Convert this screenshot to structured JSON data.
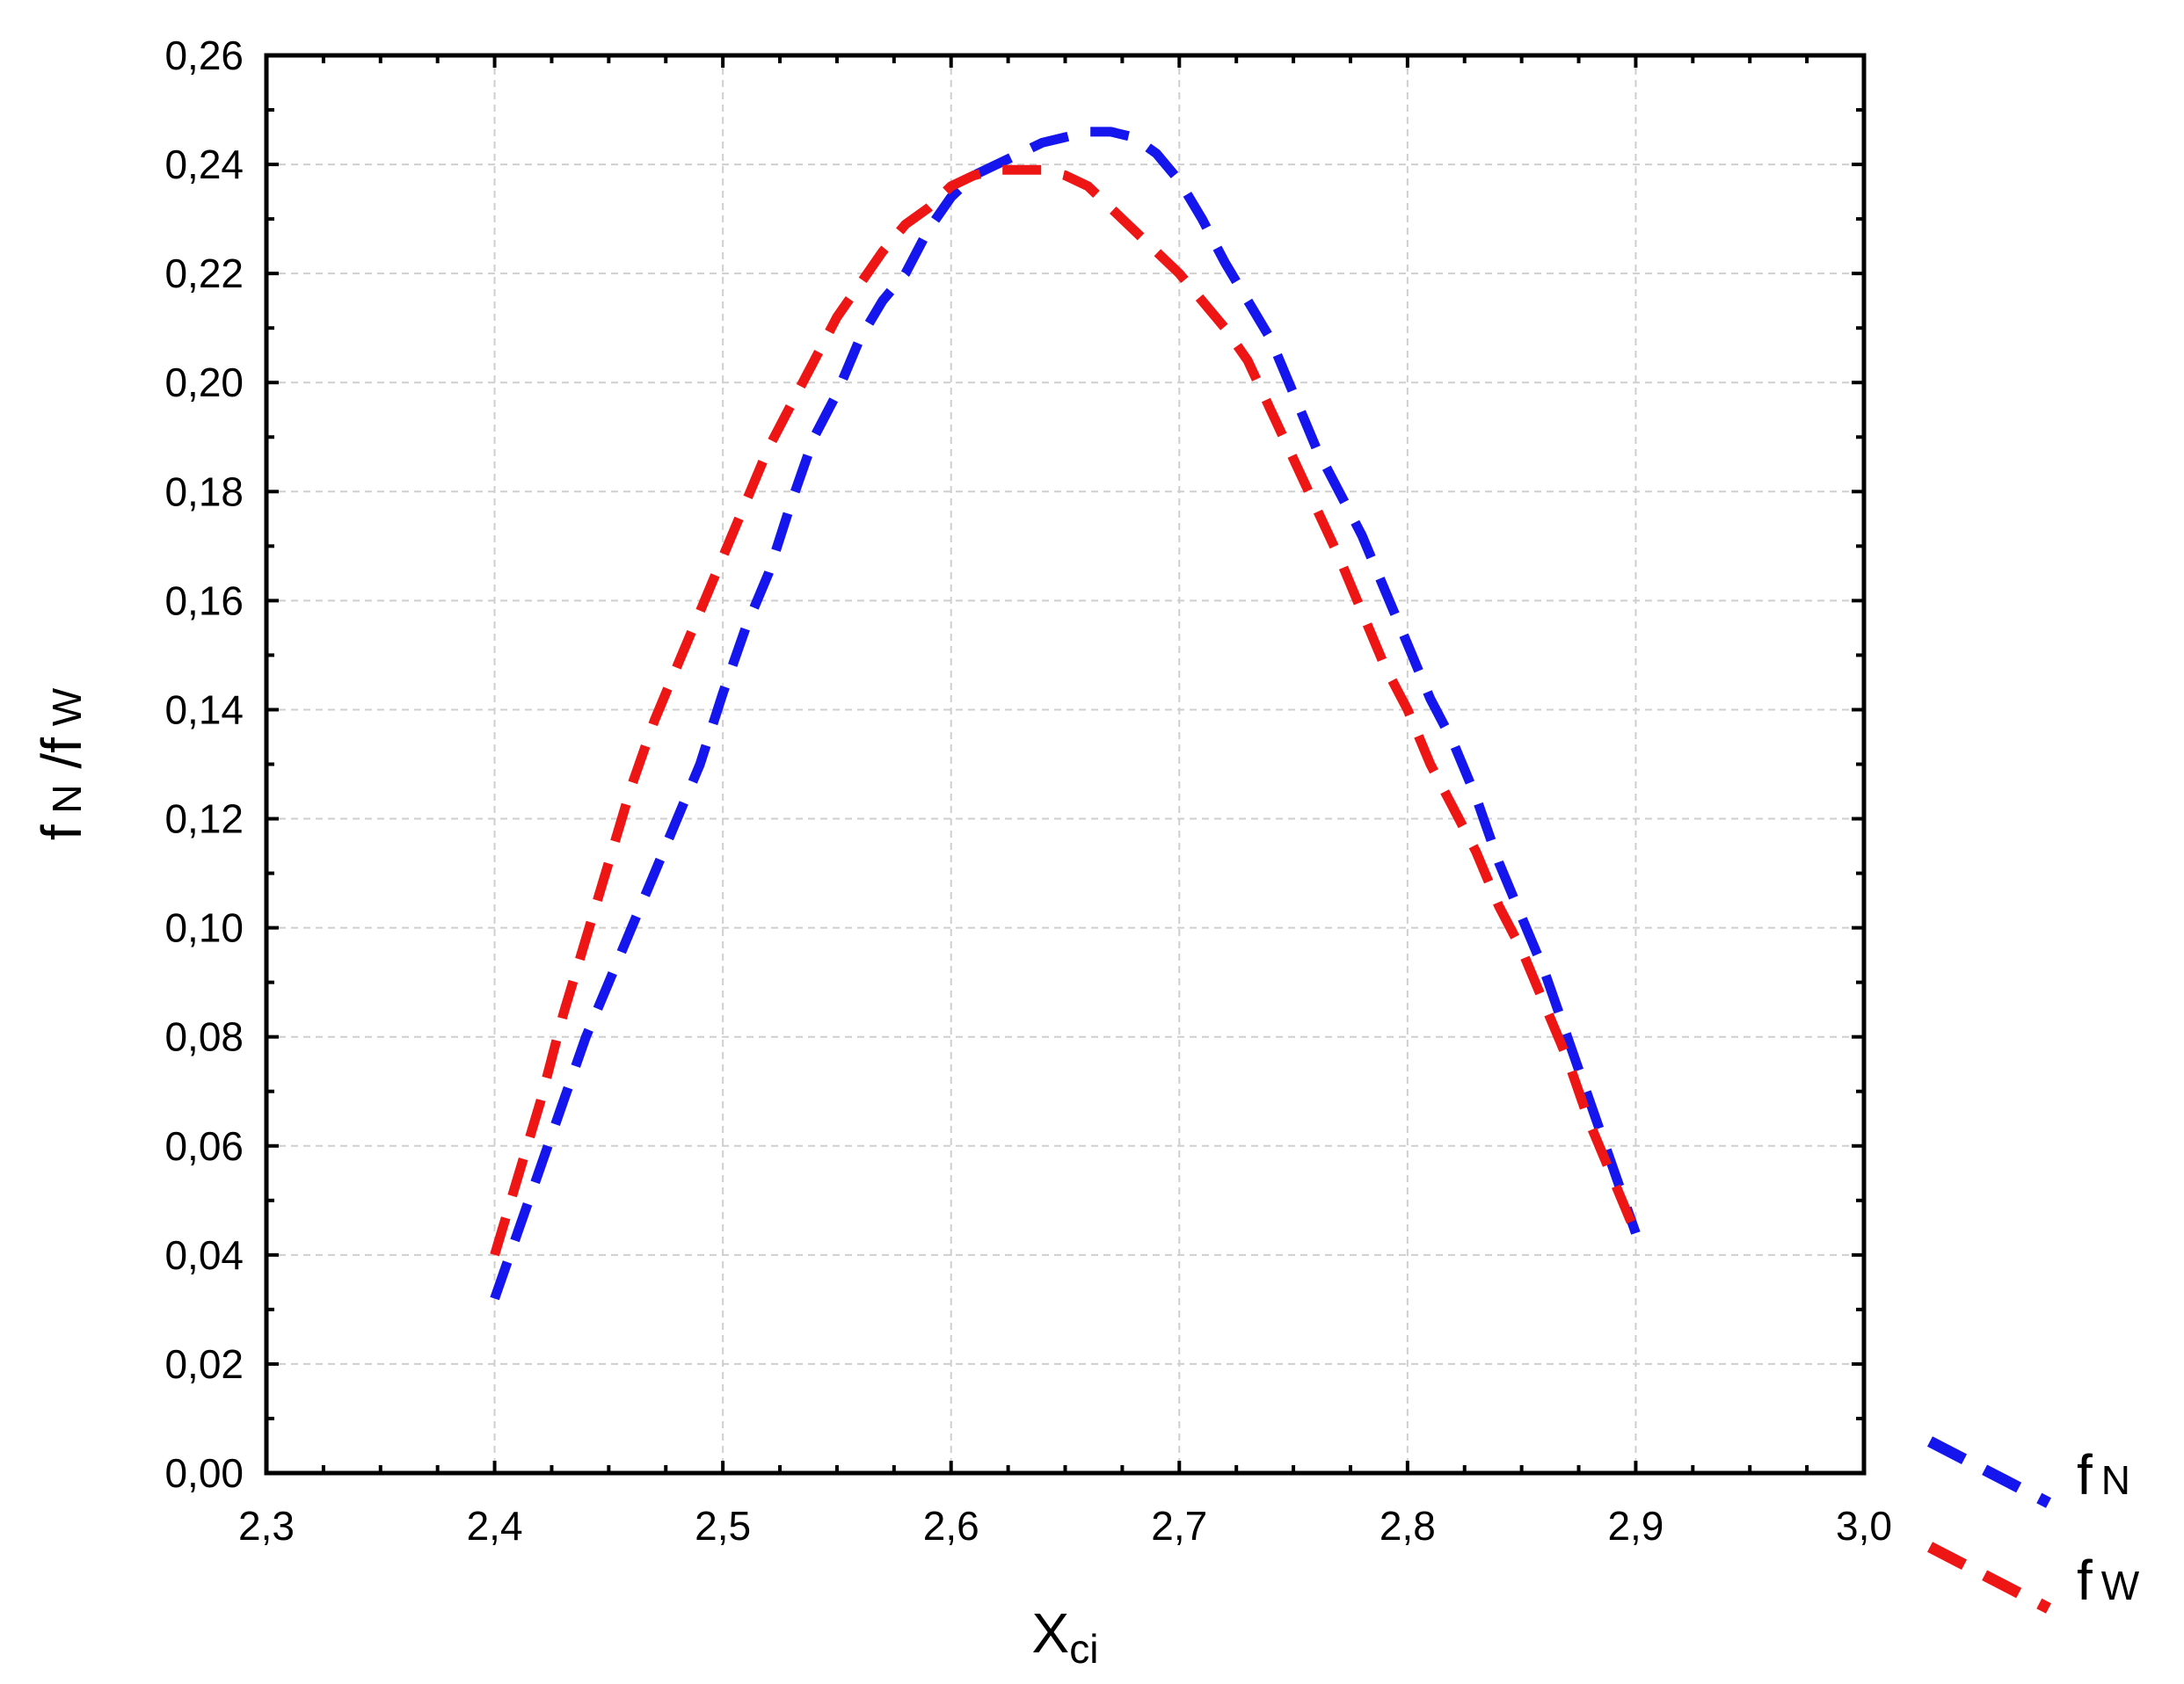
{
  "chart_data": {
    "type": "line",
    "title": "",
    "xlabel": "X",
    "xlabel_sub": "ci",
    "ylabel": {
      "parts": [
        {
          "t": "f",
          "sub": false
        },
        {
          "t": " N",
          "sub": true
        },
        {
          "t": " /",
          "sub": false
        },
        {
          "t": "f",
          "sub": false
        },
        {
          "t": " W",
          "sub": true
        }
      ]
    },
    "xlim": [
      2.3,
      3.0
    ],
    "ylim": [
      0.0,
      0.26
    ],
    "x_ticks": [
      "2,3",
      "2,4",
      "2,5",
      "2,6",
      "2,7",
      "2,8",
      "2,9",
      "3,0"
    ],
    "x_tick_values": [
      2.3,
      2.4,
      2.5,
      2.6,
      2.7,
      2.8,
      2.9,
      3.0
    ],
    "y_ticks": [
      "0,00",
      "0,02",
      "0,04",
      "0,06",
      "0,08",
      "0,10",
      "0,12",
      "0,14",
      "0,16",
      "0,18",
      "0,20",
      "0,22",
      "0,24",
      "0,26"
    ],
    "y_tick_values": [
      0.0,
      0.02,
      0.04,
      0.06,
      0.08,
      0.1,
      0.12,
      0.14,
      0.16,
      0.18,
      0.2,
      0.22,
      0.24,
      0.26
    ],
    "grid": true,
    "legend_position": "right-bottom, outside plot",
    "series": [
      {
        "name": "fN",
        "legend_main": "f",
        "legend_sub": "N",
        "color": "#1515ee",
        "line_style": "dashed",
        "x": [
          2.4,
          2.41,
          2.42,
          2.43,
          2.44,
          2.45,
          2.46,
          2.47,
          2.48,
          2.49,
          2.5,
          2.51,
          2.52,
          2.53,
          2.54,
          2.55,
          2.56,
          2.57,
          2.58,
          2.59,
          2.6,
          2.61,
          2.62,
          2.63,
          2.64,
          2.65,
          2.66,
          2.67,
          2.68,
          2.69,
          2.7,
          2.71,
          2.72,
          2.73,
          2.74,
          2.75,
          2.76,
          2.77,
          2.78,
          2.79,
          2.8,
          2.81,
          2.82,
          2.83,
          2.84,
          2.85,
          2.86,
          2.87,
          2.88,
          2.89,
          2.9
        ],
        "values": [
          0.032,
          0.044,
          0.056,
          0.068,
          0.08,
          0.09,
          0.1,
          0.11,
          0.12,
          0.13,
          0.143,
          0.155,
          0.165,
          0.178,
          0.19,
          0.198,
          0.208,
          0.215,
          0.22,
          0.228,
          0.234,
          0.238,
          0.24,
          0.242,
          0.244,
          0.245,
          0.246,
          0.246,
          0.245,
          0.242,
          0.237,
          0.23,
          0.222,
          0.215,
          0.208,
          0.198,
          0.188,
          0.18,
          0.172,
          0.162,
          0.152,
          0.142,
          0.134,
          0.124,
          0.112,
          0.102,
          0.092,
          0.08,
          0.068,
          0.056,
          0.044
        ]
      },
      {
        "name": "fW",
        "legend_main": "f",
        "legend_sub": "W",
        "color": "#ee1515",
        "line_style": "dashed",
        "x": [
          2.4,
          2.41,
          2.42,
          2.43,
          2.44,
          2.45,
          2.46,
          2.47,
          2.48,
          2.49,
          2.5,
          2.51,
          2.52,
          2.53,
          2.54,
          2.55,
          2.56,
          2.57,
          2.58,
          2.59,
          2.6,
          2.61,
          2.62,
          2.63,
          2.64,
          2.65,
          2.66,
          2.67,
          2.68,
          2.69,
          2.7,
          2.71,
          2.72,
          2.73,
          2.74,
          2.75,
          2.76,
          2.77,
          2.78,
          2.79,
          2.8,
          2.81,
          2.82,
          2.83,
          2.84,
          2.85,
          2.86,
          2.87,
          2.88,
          2.89,
          2.9
        ],
        "values": [
          0.04,
          0.054,
          0.068,
          0.084,
          0.098,
          0.112,
          0.126,
          0.138,
          0.148,
          0.158,
          0.168,
          0.178,
          0.188,
          0.196,
          0.204,
          0.212,
          0.218,
          0.224,
          0.229,
          0.232,
          0.236,
          0.238,
          0.239,
          0.239,
          0.239,
          0.238,
          0.236,
          0.232,
          0.228,
          0.224,
          0.22,
          0.215,
          0.21,
          0.204,
          0.195,
          0.186,
          0.177,
          0.168,
          0.158,
          0.148,
          0.14,
          0.13,
          0.122,
          0.114,
          0.104,
          0.096,
          0.086,
          0.076,
          0.064,
          0.054,
          0.044
        ]
      }
    ]
  }
}
